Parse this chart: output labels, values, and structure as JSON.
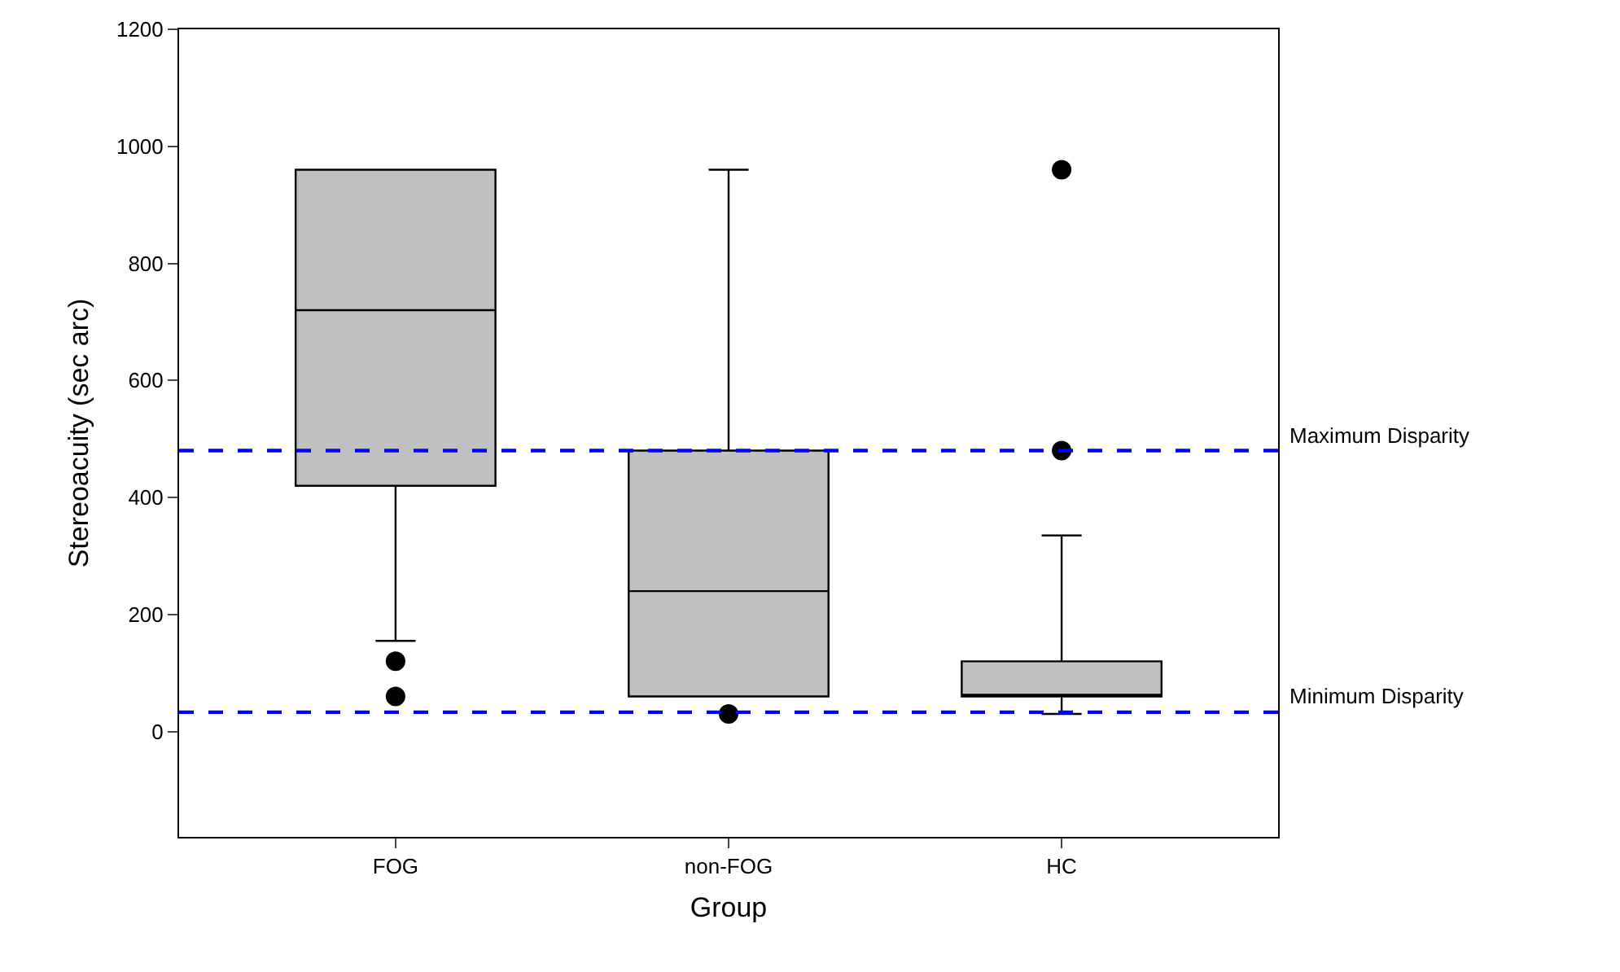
{
  "chart_data": {
    "type": "box",
    "xlabel": "Group",
    "ylabel": "Stereoacuity (sec arc)",
    "categories": [
      "FOG",
      "non-FOG",
      "HC"
    ],
    "color": "#c0c0c0",
    "marker": "circle",
    "boxes": [
      {
        "low": 155,
        "q1": 420,
        "median": 720,
        "q3": 960,
        "high": 960,
        "outliers": [
          120,
          60
        ]
      },
      {
        "low": 60,
        "q1": 60,
        "median": 240,
        "q3": 480,
        "high": 960,
        "outliers": [
          30
        ]
      },
      {
        "low": 30,
        "q1": 60,
        "median": 60,
        "q3": 120,
        "high": 335,
        "outliers": [
          480,
          960
        ]
      }
    ],
    "ylim": [
      -180,
      1200
    ],
    "yticks": [
      0,
      200,
      400,
      600,
      800,
      1000,
      1200
    ],
    "ref_lines": [
      {
        "axis": "y",
        "value": 480,
        "label": "Maximum Disparity",
        "color": "#0000ff",
        "line_style": "dashed"
      },
      {
        "axis": "y",
        "value": 33,
        "label": "Minimum Disparity",
        "color": "#0000ff",
        "line_style": "dashed"
      }
    ],
    "grid": false
  }
}
